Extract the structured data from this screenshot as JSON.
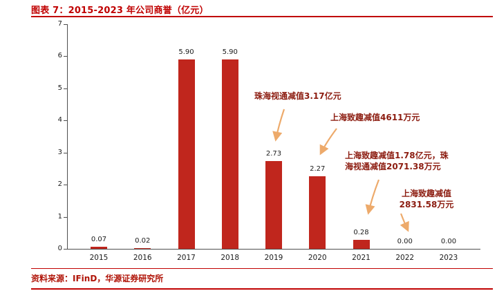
{
  "header": {
    "title": "图表 7：2015-2023 年公司商誉（亿元）"
  },
  "footer": {
    "source": "资料来源：IFinD，华源证券研究所"
  },
  "chart_data": {
    "type": "bar",
    "title": "2015-2023 年公司商誉（亿元）",
    "categories": [
      "2015",
      "2016",
      "2017",
      "2018",
      "2019",
      "2020",
      "2021",
      "2022",
      "2023"
    ],
    "values": [
      0.07,
      0.02,
      5.9,
      5.9,
      2.73,
      2.27,
      0.28,
      0.0,
      0.0
    ],
    "value_labels": [
      "0.07",
      "0.02",
      "5.90",
      "5.90",
      "2.73",
      "2.27",
      "0.28",
      "0.00",
      "0.00"
    ],
    "xlabel": "",
    "ylabel": "",
    "ylim": [
      0,
      7
    ],
    "yticks": [
      0,
      1,
      2,
      3,
      4,
      5,
      6,
      7
    ],
    "grid": false,
    "legend": false,
    "annotations": [
      {
        "text": "珠海视通减值3.17亿元",
        "target_year": "2019"
      },
      {
        "text": "上海致趣减值4611万元",
        "target_year": "2020"
      },
      {
        "text": "上海致趣减值1.78亿元，珠\n海视通减值2071.38万元",
        "target_year": "2021"
      },
      {
        "text": "上海致趣减值\n2831.58万元",
        "target_year": "2022"
      }
    ],
    "colors": {
      "bar": "#c0261d",
      "title_text": "#c00000",
      "rule": "#c00000",
      "annotation_text": "#8c1c10",
      "arrow": "#edaa6b",
      "axis": "#4d4d4d"
    }
  }
}
